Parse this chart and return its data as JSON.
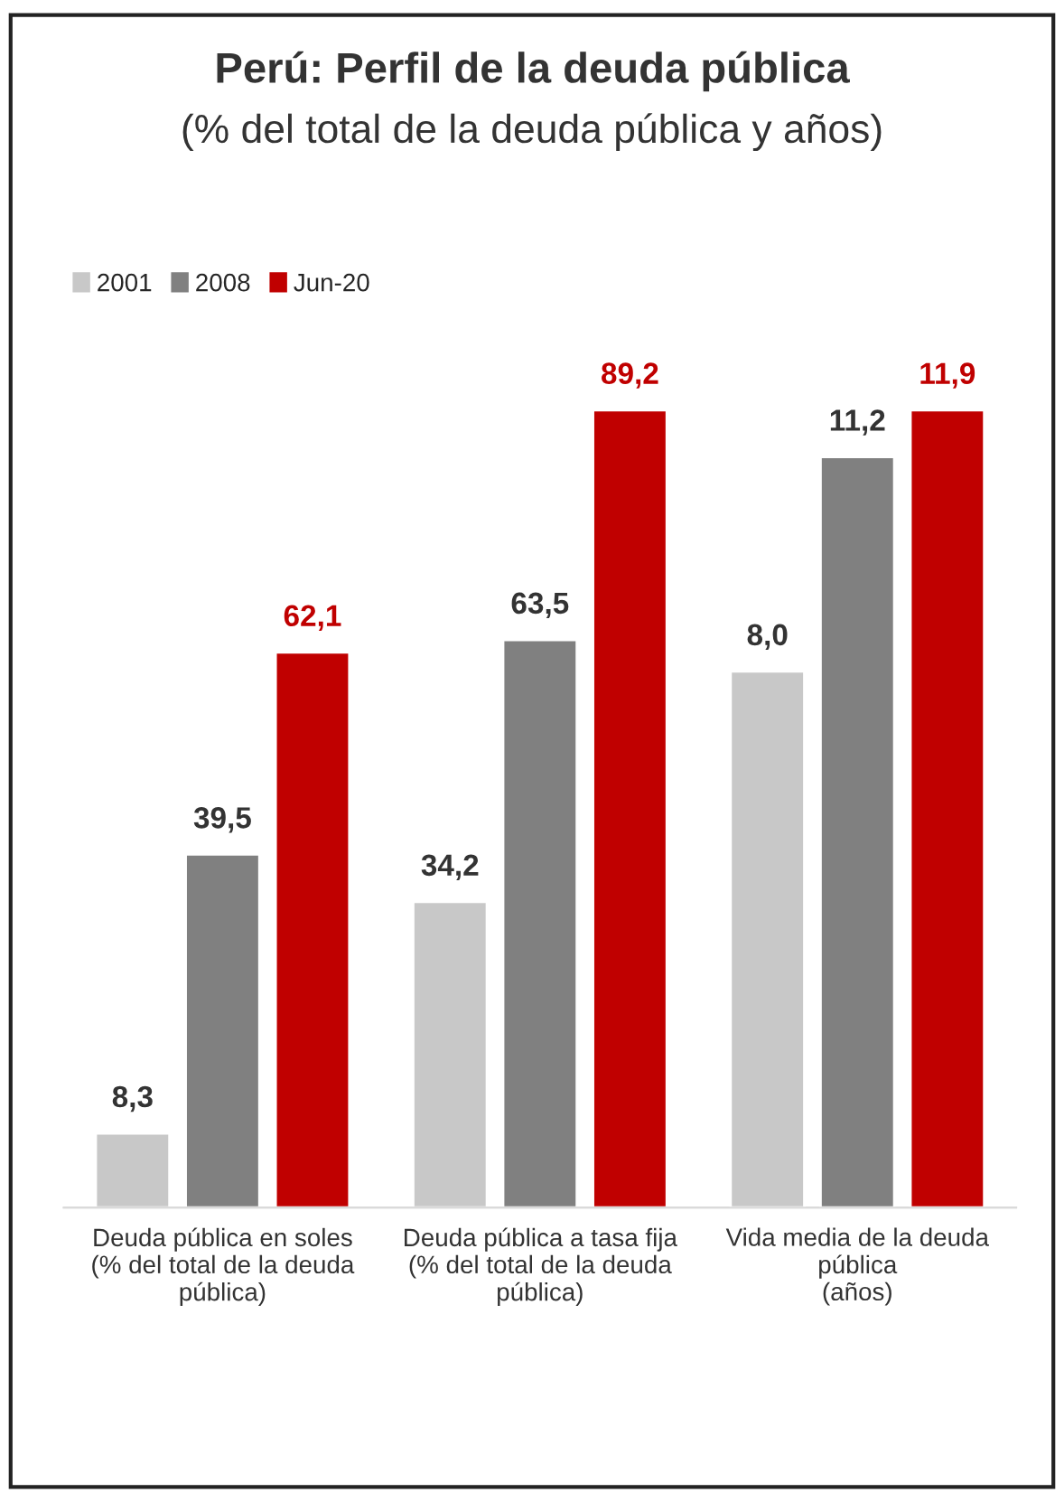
{
  "chart_data": {
    "type": "bar",
    "title": "Perú: Perfil de la deuda pública",
    "subtitle": "(% del total de la deuda pública y años)",
    "categories": [
      "Deuda pública en soles\n(% del total de la deuda\npública)",
      "Deuda pública a tasa fija\n(% del total de la deuda\npública)",
      "Vida media de la deuda\npública\n(años)"
    ],
    "legend": "top left",
    "data_labels": true,
    "series": [
      {
        "name": "2001",
        "color": "#c8c8c8",
        "values": [
          8.3,
          34.2,
          null
        ],
        "value_labels": [
          "8,3",
          "34,2",
          null
        ]
      },
      {
        "name": "2008",
        "color": "#808080",
        "values": [
          39.5,
          63.5,
          null
        ],
        "value_labels": [
          "39,5",
          "63,5",
          null
        ]
      },
      {
        "name": "Jun-20",
        "color": "#c00000",
        "values": [
          62.1,
          89.2,
          null
        ],
        "value_labels": [
          "62,1",
          "89,2",
          null
        ]
      },
      {
        "color": "#c8c8c8",
        "axis": "y2",
        "values": [
          null,
          null,
          8.0
        ],
        "value_labels": [
          null,
          null,
          "8,0"
        ]
      },
      {
        "color": "#808080",
        "axis": "y2",
        "values": [
          null,
          null,
          11.2
        ],
        "value_labels": [
          null,
          null,
          "11,2"
        ]
      },
      {
        "color": "#c00000",
        "axis": "y2",
        "values": [
          null,
          null,
          11.9
        ],
        "value_labels": [
          null,
          null,
          "11,9"
        ]
      }
    ]
  }
}
